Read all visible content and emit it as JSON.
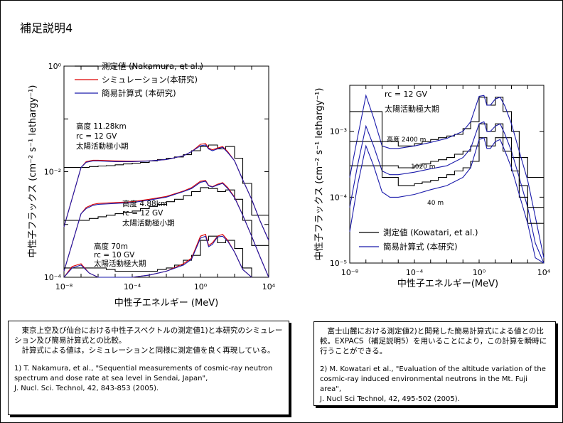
{
  "slide_title": "補足説明4",
  "colors": {
    "measured": "#000000",
    "simulation": "#dd0000",
    "formula": "#1a1aaa"
  },
  "left_caption": {
    "para1": "東京上空及び仙台における中性子スペクトルの測定値1)と本研究のシミュレーション及び簡易計算式との比較。",
    "para2": "計算式による値は，シミュレーションと同様に測定値を良く再現している。",
    "ref1": "1) T. Nakamura, et al., \"Sequential measurements of cosmic-ray neutron spectrum and dose rate at sea level in Sendai, Japan\",",
    "ref2": "J. Nucl. Sci. Technol, 42, 843-853 (2005)."
  },
  "right_caption": {
    "para1": "富士山麓における測定値2)と開発した簡易計算式による値との比較。EXPACS（補足説明5）を用いることにより，この計算を瞬時に行うことができる。",
    "ref1": "2) M. Kowatari et al., \"Evaluation of the altitude variation of the cosmic-ray induced environmental neutrons in the Mt. Fuji area\",",
    "ref2": "J. Nucl Sci Technol, 42, 495-502 (2005)."
  },
  "chart_data": [
    {
      "type": "line",
      "xlabel": "中性子エネルギー (MeV)",
      "ylabel": "中性子フラックス (cm⁻² s⁻¹ lethargy⁻¹)",
      "x_scale": "log",
      "y_scale": "log",
      "xlim": [
        1e-08,
        10000
      ],
      "ylim": [
        0.0001,
        1
      ],
      "x_ticks": [
        "10⁻⁸",
        "10⁻⁴",
        "10⁰",
        "10⁴"
      ],
      "y_ticks": [
        "10⁻⁴",
        "10⁻²",
        "10⁰"
      ],
      "legend": {
        "position": "top-left",
        "entries": [
          "測定値 (Nakamura, et al.)",
          "シミュレーション(本研究)",
          "簡易計算式 (本研究)"
        ]
      },
      "annotations": [
        {
          "lines": [
            "高度 11.28km",
            "rc = 12 GV",
            "太陽活動極小期"
          ]
        },
        {
          "lines": [
            "高度 4.88km",
            "rc = 12 GV",
            "太陽活動極小期"
          ]
        },
        {
          "lines": [
            "高度 70m",
            "rc = 10 GV",
            "太陽活動極大期"
          ]
        }
      ],
      "series": [
        {
          "name": "測定値 (Nakamura, et al.)",
          "condition": "11.28km",
          "type": "step",
          "x": [
            1e-08,
            1e-07,
            3e-07,
            1e-06,
            3e-06,
            1e-05,
            3e-05,
            0.0001,
            0.0003,
            0.001,
            0.003,
            0.01,
            0.03,
            0.1,
            0.3,
            1,
            3,
            10,
            30,
            100,
            300,
            1000,
            3000
          ],
          "y": [
            0.012,
            0.012,
            0.0125,
            0.0128,
            0.013,
            0.0135,
            0.014,
            0.0145,
            0.015,
            0.016,
            0.017,
            0.018,
            0.019,
            0.021,
            0.025,
            0.03,
            0.032,
            0.027,
            0.03,
            0.018,
            0.006,
            0.0015,
            0.0015
          ]
        },
        {
          "name": "シミュレーション(本研究)",
          "condition": "11.28km",
          "x": [
            1e-08,
            1e-07,
            2e-07,
            5e-07,
            1e-06,
            1e-05,
            0.0001,
            0.001,
            0.01,
            0.1,
            0.3,
            1,
            2,
            3,
            5,
            10,
            20,
            40,
            100,
            300,
            1000,
            3000,
            10000
          ],
          "y": [
            0.0009,
            0.012,
            0.0155,
            0.0165,
            0.0165,
            0.016,
            0.0158,
            0.016,
            0.017,
            0.02,
            0.024,
            0.033,
            0.034,
            0.028,
            0.026,
            0.028,
            0.03,
            0.024,
            0.016,
            0.007,
            0.003,
            0.0012,
            0.0005
          ]
        },
        {
          "name": "簡易計算式 (本研究)",
          "condition": "11.28km",
          "x": [
            1e-08,
            1e-07,
            2e-07,
            5e-07,
            1e-06,
            1e-05,
            0.0001,
            0.001,
            0.01,
            0.1,
            0.3,
            1,
            2,
            3,
            5,
            10,
            20,
            40,
            100,
            300,
            1000,
            3000,
            10000
          ],
          "y": [
            0.0009,
            0.012,
            0.015,
            0.016,
            0.016,
            0.0155,
            0.0155,
            0.016,
            0.017,
            0.02,
            0.024,
            0.031,
            0.032,
            0.027,
            0.025,
            0.027,
            0.029,
            0.023,
            0.016,
            0.007,
            0.003,
            0.0012,
            0.0005
          ]
        },
        {
          "name": "測定値 (Nakamura, et al.)",
          "condition": "4.88km",
          "type": "step",
          "x": [
            1e-08,
            1e-07,
            3e-07,
            1e-06,
            3e-06,
            1e-05,
            3e-05,
            0.0001,
            0.0003,
            0.001,
            0.003,
            0.01,
            0.03,
            0.1,
            0.3,
            1,
            3,
            10,
            30,
            100,
            300,
            1000,
            3000
          ],
          "y": [
            0.0012,
            0.0012,
            0.0013,
            0.0014,
            0.0015,
            0.0016,
            0.0017,
            0.0018,
            0.002,
            0.0022,
            0.0024,
            0.0027,
            0.003,
            0.0035,
            0.0042,
            0.005,
            0.0048,
            0.0042,
            0.0045,
            0.003,
            0.0012,
            0.0004,
            0.0004
          ]
        },
        {
          "name": "シミュレーション(本研究)",
          "condition": "4.88km",
          "x": [
            1e-08,
            1e-07,
            2e-07,
            5e-07,
            1e-06,
            1e-05,
            0.0001,
            0.001,
            0.01,
            0.1,
            0.3,
            1,
            2,
            3,
            5,
            10,
            20,
            40,
            100,
            300,
            1000,
            3000,
            10000
          ],
          "y": [
            0.00013,
            0.0016,
            0.0021,
            0.0024,
            0.0025,
            0.0026,
            0.0027,
            0.003,
            0.0034,
            0.0043,
            0.005,
            0.0066,
            0.0068,
            0.0055,
            0.0052,
            0.0058,
            0.0062,
            0.005,
            0.0033,
            0.0015,
            0.0006,
            0.00025,
            0.0001
          ]
        },
        {
          "name": "簡易計算式 (本研究)",
          "condition": "4.88km",
          "x": [
            1e-08,
            1e-07,
            2e-07,
            5e-07,
            1e-06,
            1e-05,
            0.0001,
            0.001,
            0.01,
            0.1,
            0.3,
            1,
            2,
            3,
            5,
            10,
            20,
            40,
            100,
            300,
            1000,
            3000,
            10000
          ],
          "y": [
            0.00013,
            0.0016,
            0.002,
            0.0023,
            0.0024,
            0.0025,
            0.0026,
            0.0029,
            0.0033,
            0.0042,
            0.0048,
            0.0063,
            0.0066,
            0.0054,
            0.0051,
            0.0056,
            0.006,
            0.0048,
            0.0032,
            0.0015,
            0.0006,
            0.00025,
            0.0001
          ]
        },
        {
          "name": "測定値 (Nakamura, et al.)",
          "condition": "70m",
          "type": "step",
          "x": [
            1e-08,
            1e-07,
            3e-07,
            1e-06,
            3e-06,
            1e-05,
            3e-05,
            0.0001,
            0.0003,
            0.001,
            0.003,
            0.01,
            0.03,
            0.1,
            0.3,
            1,
            3,
            10,
            30,
            100,
            300,
            1000,
            3000
          ],
          "y": [
            0.00015,
            0.00015,
            0.00015,
            0.00015,
            0.00014,
            0.00013,
            0.00013,
            0.00013,
            0.00013,
            0.00013,
            0.00014,
            0.00015,
            0.00017,
            0.00021,
            0.00026,
            0.0005,
            0.0006,
            0.00045,
            0.0005,
            0.00035,
            0.00015,
            0.0001,
            0.0001
          ]
        },
        {
          "name": "シミュレーション(本研究)",
          "condition": "70m",
          "x": [
            1e-08,
            3e-08,
            1e-07,
            3e-07,
            1e-06,
            3e-06,
            1e-05,
            0.0001,
            0.001,
            0.01,
            0.1,
            0.3,
            1,
            2,
            3,
            5,
            10,
            20,
            40,
            100,
            300,
            1000
          ],
          "y": [
            0.0001,
            0.00016,
            0.00018,
            0.00012,
            0.0001,
            0.0001,
            0.0001,
            0.0001,
            0.00011,
            0.00013,
            0.00018,
            0.00023,
            0.0006,
            0.00065,
            0.0004,
            0.00045,
            0.0006,
            0.00065,
            0.0005,
            0.0003,
            0.00014,
            0.0001
          ]
        },
        {
          "name": "簡易計算式 (本研究)",
          "condition": "70m",
          "x": [
            1e-08,
            3e-08,
            1e-07,
            3e-07,
            1e-06,
            3e-06,
            1e-05,
            0.0001,
            0.001,
            0.01,
            0.1,
            0.3,
            1,
            2,
            3,
            5,
            10,
            20,
            40,
            100,
            300,
            1000
          ],
          "y": [
            0.0001,
            0.00015,
            0.00017,
            0.00012,
            0.0001,
            0.0001,
            0.0001,
            0.0001,
            0.00011,
            0.00013,
            0.00017,
            0.00022,
            0.00055,
            0.0006,
            0.00038,
            0.00042,
            0.00058,
            0.0006,
            0.00048,
            0.0003,
            0.00014,
            0.0001
          ]
        }
      ]
    },
    {
      "type": "line",
      "xlabel": "中性子エネルギー(MeV)",
      "ylabel": "中性子フラックス (cm⁻² s⁻¹ lethargy⁻¹)",
      "x_scale": "log",
      "y_scale": "log",
      "xlim": [
        1e-08,
        10000
      ],
      "ylim": [
        1e-05,
        0.005
      ],
      "x_ticks": [
        "10⁻⁸",
        "10⁻⁴",
        "10⁰",
        "10⁴"
      ],
      "y_ticks": [
        "10⁻⁵",
        "10⁻⁴",
        "10⁻³"
      ],
      "legend": {
        "position": "bottom-left",
        "entries": [
          "測定値 (Kowatari, et al.)",
          "簡易計算式 (本研究)"
        ]
      },
      "annotations": [
        {
          "lines": [
            "rc = 12 GV",
            "太陽活動極大期"
          ]
        },
        {
          "lines": [
            "高度 2400 m"
          ]
        },
        {
          "lines": [
            "1020 m"
          ]
        },
        {
          "lines": [
            "40 m"
          ]
        }
      ],
      "series": [
        {
          "name": "測定値 (Kowatari, et al.)",
          "condition": "2400 m",
          "type": "step",
          "x": [
            1e-08,
            1e-06,
            1e-05,
            0.0001,
            0.0003,
            0.001,
            0.003,
            0.01,
            0.03,
            0.1,
            0.3,
            1,
            3,
            10,
            30,
            100,
            300,
            1000,
            3000
          ],
          "y": [
            0.002,
            0.0007,
            0.0006,
            0.00065,
            0.0007,
            0.00075,
            0.0008,
            0.00085,
            0.0009,
            0.0011,
            0.0014,
            0.0033,
            0.0025,
            0.0033,
            0.002,
            0.001,
            0.0004,
            0.0002,
            0.0002
          ]
        },
        {
          "name": "簡易計算式 (本研究)",
          "condition": "2400 m",
          "x": [
            1e-08,
            3e-08,
            1e-07,
            3e-07,
            1e-06,
            3e-06,
            1e-05,
            0.0001,
            0.001,
            0.01,
            0.1,
            0.3,
            1,
            2,
            3,
            5,
            10,
            20,
            40,
            100,
            300,
            1000,
            3000,
            10000
          ],
          "y": [
            0.0002,
            0.0008,
            0.0035,
            0.0016,
            0.0006,
            0.00055,
            0.00055,
            0.0006,
            0.00068,
            0.00078,
            0.001,
            0.0014,
            0.0034,
            0.0035,
            0.0025,
            0.0025,
            0.0031,
            0.0033,
            0.0024,
            0.0013,
            0.0005,
            0.00018,
            5e-05,
            1.2e-05
          ]
        },
        {
          "name": "測定値 (Kowatari, et al.)",
          "condition": "1020 m",
          "type": "step",
          "x": [
            1e-08,
            1e-06,
            1e-05,
            0.0001,
            0.0003,
            0.001,
            0.003,
            0.01,
            0.03,
            0.1,
            0.3,
            1,
            3,
            10,
            30,
            100,
            300,
            1000,
            3000
          ],
          "y": [
            0.0007,
            0.0003,
            0.00028,
            0.0003,
            0.00032,
            0.00035,
            0.00037,
            0.0004,
            0.00045,
            0.0005,
            0.0006,
            0.0013,
            0.001,
            0.0013,
            0.0008,
            0.0004,
            0.00015,
            7e-05,
            7e-05
          ]
        },
        {
          "name": "簡易計算式 (本研究)",
          "condition": "1020 m",
          "x": [
            1e-08,
            3e-08,
            1e-07,
            3e-07,
            1e-06,
            3e-06,
            1e-05,
            0.0001,
            0.001,
            0.01,
            0.1,
            0.3,
            1,
            2,
            3,
            5,
            10,
            20,
            40,
            100,
            300,
            1000,
            3000,
            10000
          ],
          "y": [
            7e-05,
            0.0003,
            0.0012,
            0.0006,
            0.00025,
            0.00022,
            0.00022,
            0.00024,
            0.00027,
            0.0003,
            0.0004,
            0.00055,
            0.0013,
            0.0014,
            0.001,
            0.001,
            0.0012,
            0.0013,
            0.0009,
            0.0005,
            0.0002,
            7e-05,
            2e-05,
            8e-06
          ]
        },
        {
          "name": "測定値 (Kowatari, et al.)",
          "condition": "40 m",
          "type": "step",
          "x": [
            1e-08,
            1e-06,
            1e-05,
            0.0001,
            0.0003,
            0.001,
            0.003,
            0.01,
            0.03,
            0.1,
            0.3,
            1,
            3,
            10,
            30,
            100,
            300,
            1000,
            3000
          ],
          "y": [
            0.0003,
            0.0002,
            0.00015,
            0.00016,
            0.00017,
            0.00018,
            0.0002,
            0.00022,
            0.00025,
            0.00028,
            0.00035,
            0.0008,
            0.0006,
            0.0008,
            0.0005,
            0.00025,
            0.0001,
            4e-05,
            4e-05
          ]
        },
        {
          "name": "簡易計算式 (本研究)",
          "condition": "40 m",
          "x": [
            1e-08,
            3e-08,
            1e-07,
            3e-07,
            1e-06,
            3e-06,
            1e-05,
            0.0001,
            0.001,
            0.01,
            0.1,
            0.3,
            1,
            2,
            3,
            5,
            10,
            20,
            40,
            100,
            300,
            1000,
            3000,
            10000
          ],
          "y": [
            3e-05,
            0.00015,
            0.0006,
            0.0003,
            0.00012,
            0.0001,
            0.0001,
            0.00011,
            0.00013,
            0.00015,
            0.0002,
            0.00028,
            0.00075,
            0.0008,
            0.00055,
            0.00055,
            0.0007,
            0.00075,
            0.0005,
            0.00028,
            0.00011,
            4e-05,
            1.2e-05,
            5e-06
          ]
        }
      ]
    }
  ]
}
